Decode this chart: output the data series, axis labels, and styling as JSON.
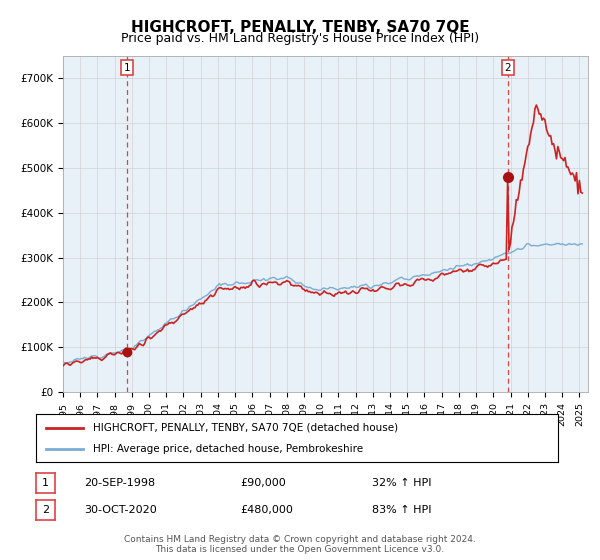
{
  "title": "HIGHCROFT, PENALLY, TENBY, SA70 7QE",
  "subtitle": "Price paid vs. HM Land Registry's House Price Index (HPI)",
  "ylabel_ticks": [
    "£0",
    "£100K",
    "£200K",
    "£300K",
    "£400K",
    "£500K",
    "£600K",
    "£700K"
  ],
  "ytick_values": [
    0,
    100000,
    200000,
    300000,
    400000,
    500000,
    600000,
    700000
  ],
  "ylim": [
    0,
    750000
  ],
  "xlim_start": 1995.0,
  "xlim_end": 2025.5,
  "sale1_x": 1998.72,
  "sale1_y": 90000,
  "sale2_x": 2020.83,
  "sale2_y": 480000,
  "legend_line1": "HIGHCROFT, PENALLY, TENBY, SA70 7QE (detached house)",
  "legend_line2": "HPI: Average price, detached house, Pembrokeshire",
  "annotation1_label": "1",
  "annotation1_date": "20-SEP-1998",
  "annotation1_price": "£90,000",
  "annotation1_hpi": "32% ↑ HPI",
  "annotation2_label": "2",
  "annotation2_date": "30-OCT-2020",
  "annotation2_price": "£480,000",
  "annotation2_hpi": "83% ↑ HPI",
  "footer": "Contains HM Land Registry data © Crown copyright and database right 2024.\nThis data is licensed under the Open Government Licence v3.0.",
  "hpi_color": "#7aadd4",
  "price_color": "#cc2222",
  "sale_dot_color": "#aa1111",
  "vline_color": "#dd4444",
  "grid_color": "#cccccc",
  "bg_color": "#ffffff",
  "plot_bg_color": "#e8f0f8",
  "title_fontsize": 11,
  "subtitle_fontsize": 9
}
